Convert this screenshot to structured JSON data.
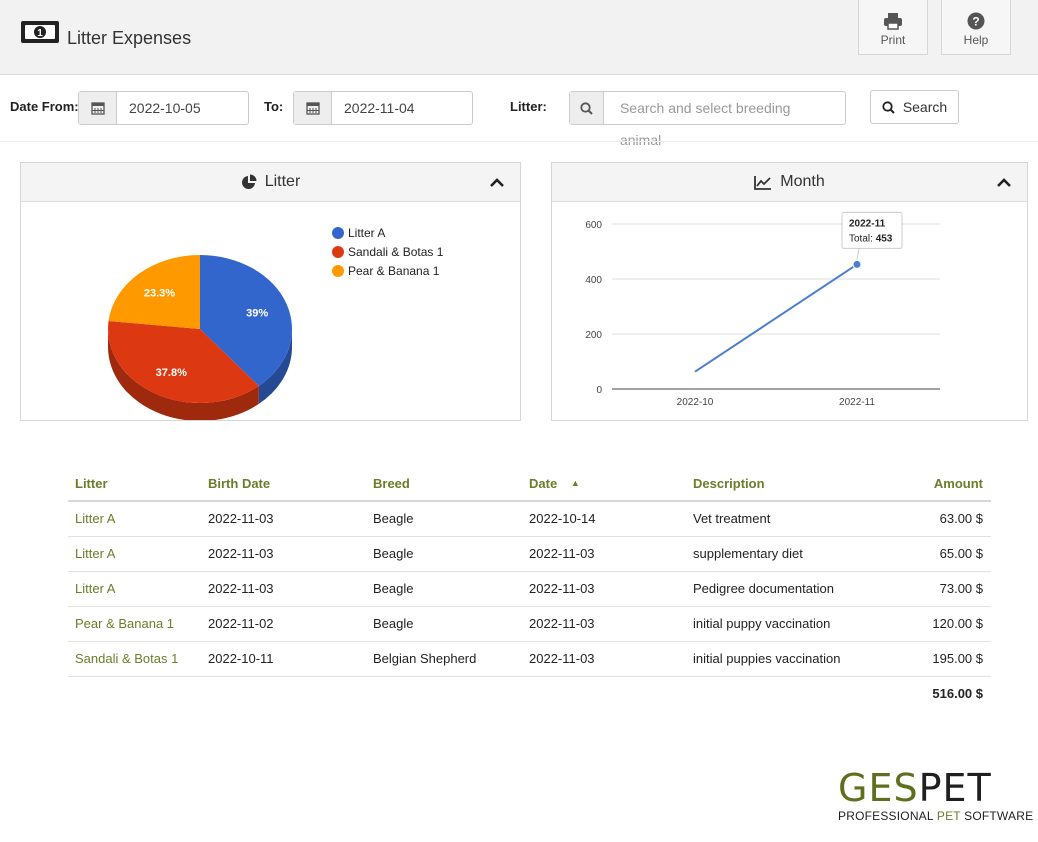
{
  "header": {
    "title": "Litter Expenses",
    "print_label": "Print",
    "help_label": "Help"
  },
  "filters": {
    "date_from_label": "Date From:",
    "date_from_value": "2022-10-05",
    "to_label": "To:",
    "to_value": "2022-11-04",
    "litter_label": "Litter:",
    "litter_placeholder": "Search and select breeding animal",
    "search_label": "Search"
  },
  "panels": {
    "litter_title": "Litter",
    "month_title": "Month"
  },
  "chart_data": [
    {
      "type": "pie",
      "title": "Litter",
      "categories": [
        "Litter A",
        "Sandali & Botas 1",
        "Pear & Banana 1"
      ],
      "values": [
        39,
        37.8,
        23.3
      ],
      "labels": [
        "39%",
        "37.8%",
        "23.3%"
      ],
      "colors": [
        "#3366cc",
        "#dc3912",
        "#ff9900"
      ],
      "legend_position": "right"
    },
    {
      "type": "line",
      "title": "Month",
      "x": [
        "2022-10",
        "2022-11"
      ],
      "series": [
        {
          "values": [
            63,
            453
          ]
        }
      ],
      "yticks": [
        "600",
        "400",
        "200",
        "0"
      ],
      "ylim": [
        0,
        600
      ],
      "grid": true,
      "tooltip": {
        "title": "2022-11",
        "label": "Total: ",
        "value": "453"
      },
      "color": "#4a7fcf"
    }
  ],
  "table": {
    "headers": [
      "Litter",
      "Birth Date",
      "Breed",
      "Date",
      "Description",
      "Amount"
    ],
    "sort_indicator": "▲",
    "rows": [
      [
        "Litter A",
        "2022-11-03",
        "Beagle",
        "2022-10-14",
        "Vet treatment",
        "63.00 $"
      ],
      [
        "Litter A",
        "2022-11-03",
        "Beagle",
        "2022-11-03",
        "supplementary diet",
        "65.00 $"
      ],
      [
        "Litter A",
        "2022-11-03",
        "Beagle",
        "2022-11-03",
        "Pedigree documentation",
        "73.00 $"
      ],
      [
        "Pear & Banana 1",
        "2022-11-02",
        "Beagle",
        "2022-11-03",
        "initial puppy vaccination",
        "120.00 $"
      ],
      [
        "Sandali & Botas 1",
        "2022-10-11",
        "Belgian Shepherd",
        "2022-11-03",
        "initial puppies vaccination",
        "195.00 $"
      ]
    ],
    "total": "516.00 $"
  },
  "logo": {
    "brand_part1": "GES",
    "brand_part2": "PET",
    "tag_part1": "PROFESSIONAL ",
    "tag_part2": "PET ",
    "tag_part3": "SOFTWARE"
  },
  "colors": {
    "accent_green": "#6b7d2a",
    "pie_blue": "#3366cc",
    "pie_red": "#dc3912",
    "pie_orange": "#ff9900"
  }
}
